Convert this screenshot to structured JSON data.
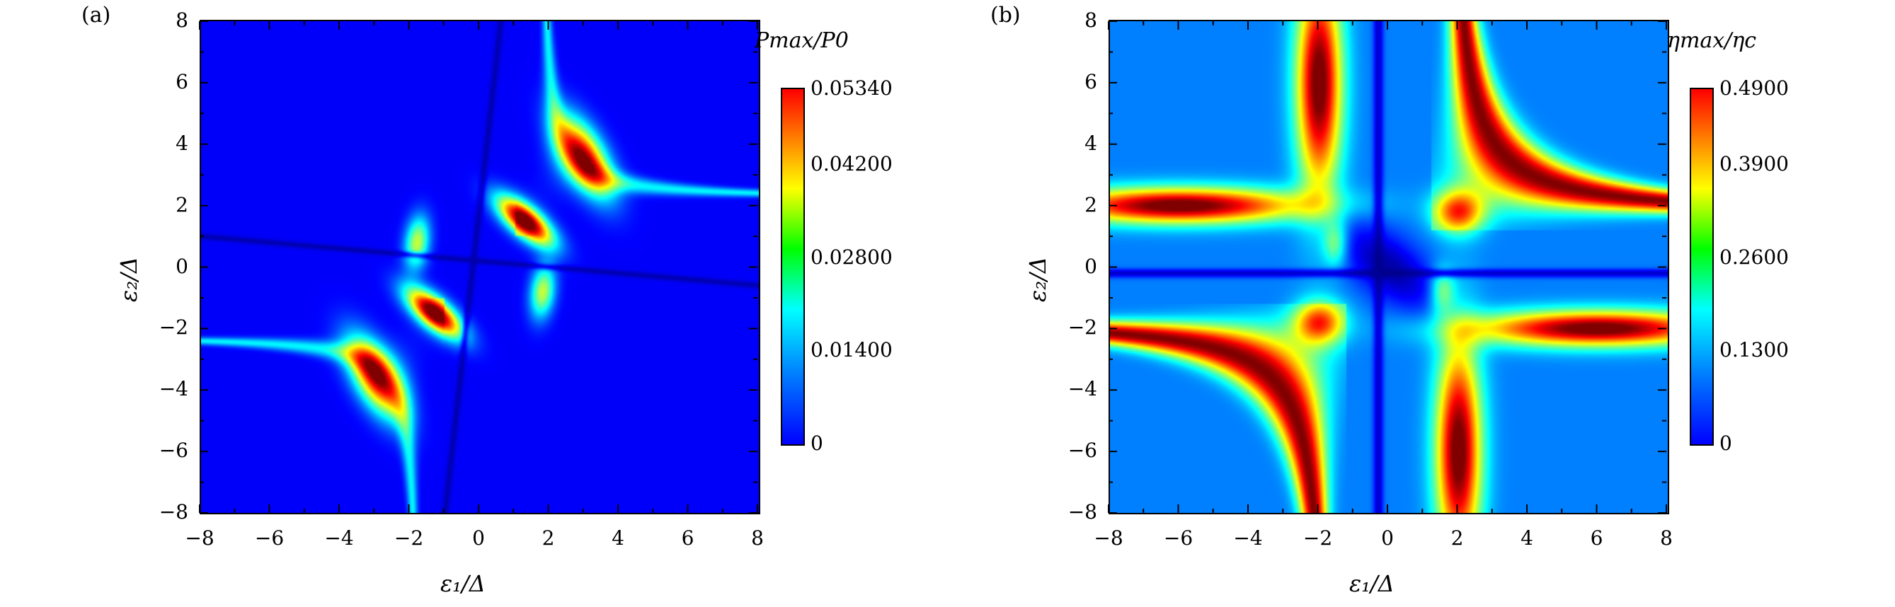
{
  "chart_data": [
    {
      "type": "heatmap",
      "panel_label": "(a)",
      "xlabel": "ε₁/Δ",
      "ylabel": "ε₂/Δ",
      "xlim": [
        -8,
        8
      ],
      "ylim": [
        -8,
        8
      ],
      "xticks": [
        "−8",
        "−6",
        "−4",
        "−2",
        "0",
        "2",
        "4",
        "6",
        "8"
      ],
      "yticks": [
        "8",
        "6",
        "4",
        "2",
        "0",
        "−2",
        "−4",
        "−6",
        "−8"
      ],
      "colorbar": {
        "title": "Pmax/P0",
        "range": [
          0,
          0.0534
        ],
        "ticks": [
          "0.05340",
          "0.04200",
          "0.02800",
          "0.01400",
          "0"
        ],
        "colormap": "jet"
      },
      "features": [
        {
          "x": 1.5,
          "y": 1.5,
          "value": 0.0534,
          "label": "peak"
        },
        {
          "x": -1.5,
          "y": -1.5,
          "value": 0.0534,
          "label": "peak"
        },
        {
          "x": 3.0,
          "y": 3.5,
          "value": 0.04,
          "label": "secondary peak"
        },
        {
          "x": -3.0,
          "y": -3.5,
          "value": 0.04,
          "label": "secondary peak"
        },
        {
          "x": -1.8,
          "y": 0.8,
          "value": 0.025,
          "label": "side lobe"
        },
        {
          "x": 1.8,
          "y": -0.8,
          "value": 0.025,
          "label": "side lobe"
        }
      ]
    },
    {
      "type": "heatmap",
      "panel_label": "(b)",
      "xlabel": "ε₁/Δ",
      "ylabel": "ε₂/Δ",
      "xlim": [
        -8,
        8
      ],
      "ylim": [
        -8,
        8
      ],
      "xticks": [
        "−8",
        "−6",
        "−4",
        "−2",
        "0",
        "2",
        "4",
        "6",
        "8"
      ],
      "yticks": [
        "8",
        "6",
        "4",
        "2",
        "0",
        "−2",
        "−4",
        "−6",
        "−8"
      ],
      "colorbar": {
        "title": "ηmax/ηc",
        "range": [
          0,
          0.49
        ],
        "ticks": [
          "0.4900",
          "0.3900",
          "0.2600",
          "0.1300",
          "0"
        ],
        "colormap": "jet"
      },
      "features": [
        {
          "x": 5.0,
          "y": 5.0,
          "value": 0.49,
          "label": "high region"
        },
        {
          "x": -5.0,
          "y": -5.0,
          "value": 0.49,
          "label": "high region"
        },
        {
          "x": -2.0,
          "y": 6.0,
          "value": 0.49,
          "label": "band"
        },
        {
          "x": 2.0,
          "y": -6.0,
          "value": 0.49,
          "label": "band"
        },
        {
          "x": -6.0,
          "y": 2.0,
          "value": 0.49,
          "label": "band"
        },
        {
          "x": 6.0,
          "y": -2.0,
          "value": 0.49,
          "label": "band"
        }
      ]
    }
  ]
}
